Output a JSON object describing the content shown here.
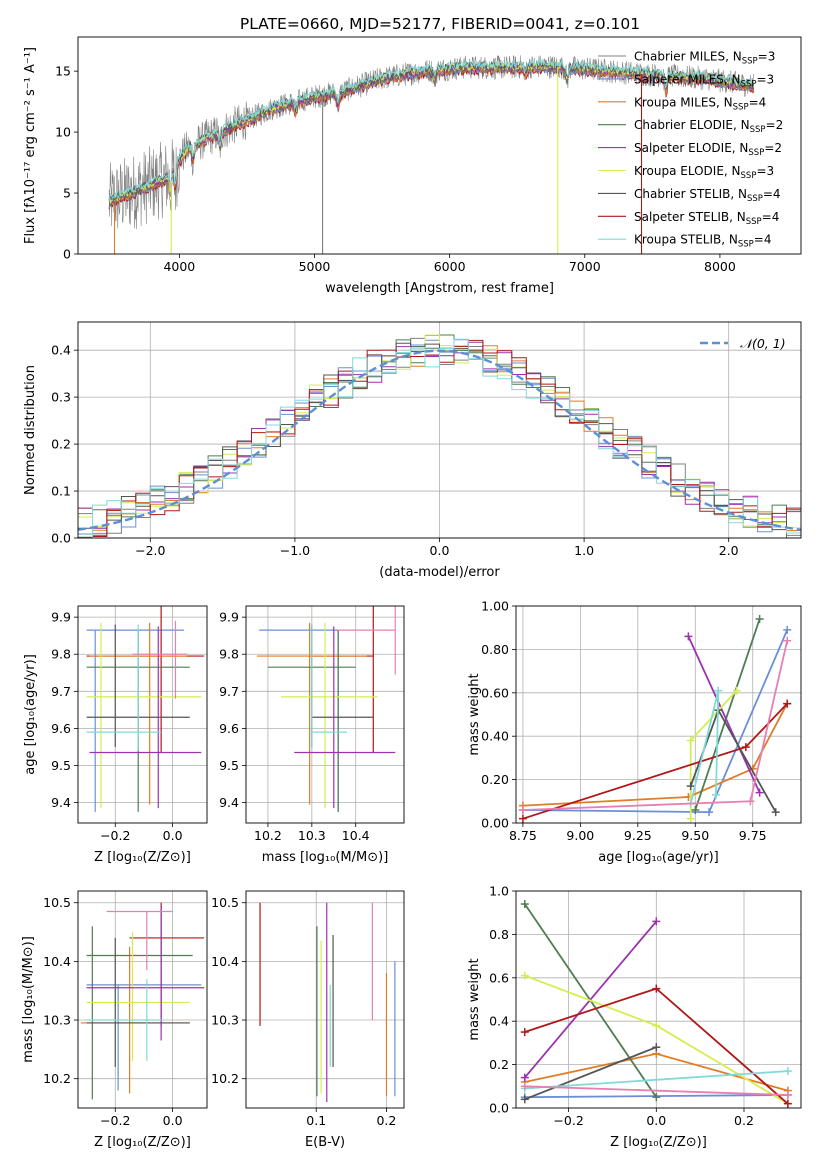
{
  "title": "PLATE=0660, MJD=52177, FIBERID=0041, z=0.101",
  "colors": {
    "cm": "#808080",
    "sm": "#6a8fd8",
    "km": "#e07d28",
    "ce": "#4f7d52",
    "se": "#9c32b0",
    "ke": "#d4ee52",
    "cs": "#555555",
    "ss": "#b01818",
    "ks": "#7fdad8",
    "pink": "#e87fb2",
    "normal": "#5b8fd6"
  },
  "chart_data": [
    {
      "id": "spectrum",
      "type": "line",
      "xlabel": "wavelength [Angstrom, rest frame]",
      "ylabel": "Flux [fλ10⁻¹⁷ erg cm⁻² s⁻¹ A⁻¹]",
      "xlim": [
        3250,
        8600
      ],
      "ylim": [
        0,
        17.8
      ],
      "xticks": [
        4000,
        5000,
        6000,
        7000,
        8000
      ],
      "yticks": [
        0,
        5,
        10,
        15
      ],
      "legend_position": "right",
      "legend": [
        {
          "label": "Chabrier MILES, N",
          "sub": "SSP",
          "suffix": "=3",
          "color": "cm"
        },
        {
          "label": "Salpeter MILES, N",
          "sub": "SSP",
          "suffix": "=3",
          "color": "sm"
        },
        {
          "label": "Kroupa MILES, N",
          "sub": "SSP",
          "suffix": "=4",
          "color": "km"
        },
        {
          "label": "Chabrier ELODIE, N",
          "sub": "SSP",
          "suffix": "=2",
          "color": "ce"
        },
        {
          "label": "Salpeter ELODIE, N",
          "sub": "SSP",
          "suffix": "=2",
          "color": "se"
        },
        {
          "label": "Kroupa ELODIE, N",
          "sub": "SSP",
          "suffix": "=3",
          "color": "ke"
        },
        {
          "label": "Chabrier STELIB, N",
          "sub": "SSP",
          "suffix": "=4",
          "color": "cs"
        },
        {
          "label": "Salpeter STELIB, N",
          "sub": "SSP",
          "suffix": "=4",
          "color": "ss"
        },
        {
          "label": "Kroupa STELIB, N",
          "sub": "SSP",
          "suffix": "=4",
          "color": "ks"
        }
      ],
      "continuum_knots": [
        [
          3480,
          4.3
        ],
        [
          3700,
          5.3
        ],
        [
          3900,
          6.2
        ],
        [
          4050,
          8.5
        ],
        [
          4200,
          9.5
        ],
        [
          4400,
          10.5
        ],
        [
          4700,
          12.0
        ],
        [
          5000,
          12.9
        ],
        [
          5200,
          13.3
        ],
        [
          5500,
          14.4
        ],
        [
          5800,
          15.0
        ],
        [
          6100,
          15.3
        ],
        [
          6400,
          15.3
        ],
        [
          6700,
          15.4
        ],
        [
          7000,
          15.2
        ],
        [
          7300,
          14.9
        ],
        [
          7600,
          14.6
        ],
        [
          7900,
          14.4
        ],
        [
          8250,
          13.8
        ]
      ],
      "absorption_features": [
        [
          3934,
          -1.5
        ],
        [
          3969,
          -1.5
        ],
        [
          4102,
          -1.0
        ],
        [
          4300,
          -1.2
        ],
        [
          4861,
          -0.8
        ],
        [
          5175,
          -1.0
        ],
        [
          5890,
          -0.8
        ],
        [
          6563,
          -0.5
        ],
        [
          6870,
          -1.0
        ],
        [
          7600,
          -1.2
        ]
      ],
      "noisy_model_lines": [
        [
          5060,
          "cm"
        ],
        [
          6800,
          "ke"
        ],
        [
          7420,
          "ss"
        ]
      ]
    },
    {
      "id": "residuals",
      "type": "bar",
      "xlabel": "(data-model)/error",
      "ylabel": "Normed distribution",
      "xlim": [
        -2.5,
        2.5
      ],
      "ylim": [
        0,
        0.46
      ],
      "xticks": [
        -2,
        -1,
        0,
        1,
        2
      ],
      "yticks": [
        0.0,
        0.1,
        0.2,
        0.3,
        0.4
      ],
      "bin_width": 0.1,
      "legend_label": "𝒩(0, 1)",
      "legend_position": "top-right",
      "series_colors": [
        "cm",
        "sm",
        "km",
        "ce",
        "se",
        "ke",
        "cs",
        "ss",
        "ks"
      ]
    },
    {
      "id": "z-age",
      "type": "scatter",
      "xlabel": "Z [log₁₀(Z/Z⊙)]",
      "ylabel": "age  [log₁₀(age/yr)]",
      "xlim": [
        -0.33,
        0.12
      ],
      "ylim": [
        9.345,
        9.93
      ],
      "xticks": [
        -0.2,
        0.0
      ],
      "yticks": [
        9.4,
        9.5,
        9.6,
        9.7,
        9.8,
        9.9
      ],
      "points": [
        {
          "x": -0.27,
          "y": 9.865,
          "xerr": [
            0.03,
            0.31
          ],
          "yerr": [
            0.49,
            0.0
          ],
          "color": "sm"
        },
        {
          "x": -0.04,
          "y": 9.795,
          "xerr": [
            0.26,
            0.15
          ],
          "yerr": [
            0.26,
            0.17
          ],
          "color": "ss"
        },
        {
          "x": -0.08,
          "y": 9.795,
          "xerr": [
            0.21,
            0.13
          ],
          "yerr": [
            0.4,
            0.09
          ],
          "color": "km"
        },
        {
          "x": -0.12,
          "y": 9.765,
          "xerr": [
            0.18,
            0.18
          ],
          "yerr": [
            0.39,
            0.1
          ],
          "color": "ce"
        },
        {
          "x": -0.25,
          "y": 9.685,
          "xerr": [
            0.05,
            0.35
          ],
          "yerr": [
            0.3,
            0.2
          ],
          "color": "ke"
        },
        {
          "x": -0.2,
          "y": 9.63,
          "xerr": [
            0.1,
            0.26
          ],
          "yerr": [
            0.08,
            0.25
          ],
          "color": "cs"
        },
        {
          "x": -0.05,
          "y": 9.535,
          "xerr": [
            0.24,
            0.15
          ],
          "yerr": [
            0.15,
            0.34
          ],
          "color": "se"
        },
        {
          "x": -0.12,
          "y": 9.59,
          "xerr": [
            0.18,
            0.08
          ],
          "yerr": [
            0.05,
            0.29
          ],
          "color": "ks"
        },
        {
          "x": 0.01,
          "y": 9.8,
          "xerr": [
            0.15,
            0.04
          ],
          "yerr": [
            0.12,
            0.09
          ],
          "color": "pink"
        }
      ]
    },
    {
      "id": "mass-age",
      "type": "scatter",
      "xlabel": "mass [log₁₀(M/M⊙)]",
      "ylabel": "",
      "xlim": [
        10.15,
        10.51
      ],
      "ylim": [
        9.345,
        9.93
      ],
      "xticks": [
        10.2,
        10.3,
        10.4
      ],
      "yticks": [
        9.4,
        9.5,
        9.6,
        9.7,
        9.8,
        9.9
      ],
      "points": [
        {
          "x": 10.36,
          "y": 9.865,
          "xerr": [
            0.18,
            0.0
          ],
          "yerr": [
            0.49,
            0.0
          ],
          "color": "sm"
        },
        {
          "x": 10.44,
          "y": 9.795,
          "xerr": [
            0.15,
            0.0
          ],
          "yerr": [
            0.26,
            0.17
          ],
          "color": "ss"
        },
        {
          "x": 10.295,
          "y": 9.795,
          "xerr": [
            0.12,
            0.13
          ],
          "yerr": [
            0.4,
            0.09
          ],
          "color": "km"
        },
        {
          "x": 10.36,
          "y": 9.765,
          "xerr": [
            0.16,
            0.04
          ],
          "yerr": [
            0.39,
            0.1
          ],
          "color": "ce"
        },
        {
          "x": 10.33,
          "y": 9.685,
          "xerr": [
            0.1,
            0.12
          ],
          "yerr": [
            0.3,
            0.2
          ],
          "color": "ke"
        },
        {
          "x": 10.3,
          "y": 9.63,
          "xerr": [
            0.0,
            0.14
          ],
          "yerr": [
            0.08,
            0.25
          ],
          "color": "cs"
        },
        {
          "x": 10.35,
          "y": 9.535,
          "xerr": [
            0.09,
            0.14
          ],
          "yerr": [
            0.15,
            0.34
          ],
          "color": "se"
        },
        {
          "x": 10.3,
          "y": 9.59,
          "xerr": [
            0.0,
            0.08
          ],
          "yerr": [
            0.05,
            0.29
          ],
          "color": "ks"
        },
        {
          "x": 10.49,
          "y": 9.865,
          "xerr": [
            0.13,
            0.0
          ],
          "yerr": [
            0.12,
            0.09
          ],
          "color": "pink"
        }
      ]
    },
    {
      "id": "age-weight",
      "type": "line",
      "xlabel": "age  [log₁₀(age/yr)]",
      "ylabel": "mass weight",
      "xlim": [
        8.72,
        9.96
      ],
      "ylim": [
        0,
        1.0
      ],
      "xticks": [
        8.75,
        9.0,
        9.25,
        9.5,
        9.75
      ],
      "yticks": [
        0.0,
        0.2,
        0.4,
        0.6,
        0.8,
        1.0
      ],
      "series": [
        {
          "color": "sm",
          "x": [
            8.75,
            9.56,
            9.9
          ],
          "y": [
            0.06,
            0.05,
            0.89
          ]
        },
        {
          "color": "km",
          "x": [
            8.75,
            9.47,
            9.75,
            9.9
          ],
          "y": [
            0.08,
            0.12,
            0.25,
            0.55
          ]
        },
        {
          "color": "ce",
          "x": [
            9.5,
            9.78
          ],
          "y": [
            0.06,
            0.94
          ]
        },
        {
          "color": "se",
          "x": [
            9.47,
            9.78
          ],
          "y": [
            0.86,
            0.14
          ]
        },
        {
          "color": "ke",
          "x": [
            9.48,
            9.48,
            9.68
          ],
          "y": [
            0.02,
            0.38,
            0.61
          ]
        },
        {
          "color": "cs",
          "x": [
            9.48,
            9.6,
            9.85
          ],
          "y": [
            0.17,
            0.52,
            0.05
          ]
        },
        {
          "color": "ss",
          "x": [
            8.75,
            9.72,
            9.9
          ],
          "y": [
            0.02,
            0.35,
            0.55
          ]
        },
        {
          "color": "ks",
          "x": [
            9.48,
            9.6,
            9.59
          ],
          "y": [
            0.09,
            0.61,
            0.13
          ]
        },
        {
          "color": "pink",
          "x": [
            8.75,
            9.74,
            9.9
          ],
          "y": [
            0.06,
            0.1,
            0.84
          ]
        }
      ]
    },
    {
      "id": "z-mass",
      "type": "scatter",
      "xlabel": "Z [log₁₀(Z/Z⊙)]",
      "ylabel": "mass [log₁₀(M/M⊙)]",
      "xlim": [
        -0.33,
        0.12
      ],
      "ylim": [
        10.15,
        10.52
      ],
      "xticks": [
        -0.2,
        0.0
      ],
      "yticks": [
        10.2,
        10.3,
        10.4,
        10.5
      ],
      "points": [
        {
          "x": -0.19,
          "y": 10.36,
          "xerr": [
            0.11,
            0.29
          ],
          "yerr": [
            0.18,
            0.0
          ],
          "color": "sm"
        },
        {
          "x": -0.04,
          "y": 10.44,
          "xerr": [
            0.11,
            0.15
          ],
          "yerr": [
            0.15,
            0.06
          ],
          "color": "ss"
        },
        {
          "x": -0.15,
          "y": 10.295,
          "xerr": [
            0.17,
            0.21
          ],
          "yerr": [
            0.12,
            0.13
          ],
          "color": "km"
        },
        {
          "x": -0.28,
          "y": 10.41,
          "xerr": [
            0.02,
            0.35
          ],
          "yerr": [
            0.245,
            0.05
          ],
          "color": "ce"
        },
        {
          "x": -0.14,
          "y": 10.33,
          "xerr": [
            0.16,
            0.2
          ],
          "yerr": [
            0.1,
            0.12
          ],
          "color": "ke"
        },
        {
          "x": -0.2,
          "y": 10.295,
          "xerr": [
            0.1,
            0.26
          ],
          "yerr": [
            0.075,
            0.145
          ],
          "color": "cs"
        },
        {
          "x": -0.04,
          "y": 10.355,
          "xerr": [
            0.26,
            0.15
          ],
          "yerr": [
            0.09,
            0.14
          ],
          "color": "se"
        },
        {
          "x": -0.09,
          "y": 10.3,
          "xerr": [
            0.21,
            0.06
          ],
          "yerr": [
            0.07,
            0.07
          ],
          "color": "ks"
        },
        {
          "x": -0.09,
          "y": 10.485,
          "xerr": [
            0.14,
            0.09
          ],
          "yerr": [
            0.1,
            0.0
          ],
          "color": "pink"
        }
      ]
    },
    {
      "id": "ebv-mass",
      "type": "scatter",
      "xlabel": "E(B-V)",
      "ylabel": "",
      "xlim": [
        0.0,
        0.225
      ],
      "ylim": [
        10.15,
        10.52
      ],
      "xticks": [
        0.1,
        0.2
      ],
      "yticks": [
        10.2,
        10.3,
        10.4,
        10.5
      ],
      "points": [
        {
          "x": 0.02,
          "y": 10.4,
          "yerr": [
            0.11,
            0.1
          ],
          "color": "ss"
        },
        {
          "x": 0.101,
          "y": 10.31,
          "yerr": [
            0.14,
            0.15
          ],
          "color": "ce"
        },
        {
          "x": 0.107,
          "y": 10.335,
          "yerr": [
            0.16,
            0.1
          ],
          "color": "ke"
        },
        {
          "x": 0.115,
          "y": 10.35,
          "yerr": [
            0.19,
            0.15
          ],
          "color": "se"
        },
        {
          "x": 0.124,
          "y": 10.33,
          "yerr": [
            0.11,
            0.115
          ],
          "color": "cs"
        },
        {
          "x": 0.12,
          "y": 10.29,
          "yerr": [
            0.07,
            0.07
          ],
          "color": "ks"
        },
        {
          "x": 0.18,
          "y": 10.4,
          "yerr": [
            0.1,
            0.1
          ],
          "color": "pink"
        },
        {
          "x": 0.2,
          "y": 10.29,
          "yerr": [
            0.12,
            0.09
          ],
          "color": "km"
        },
        {
          "x": 0.212,
          "y": 10.29,
          "yerr": [
            0.12,
            0.11
          ],
          "color": "sm"
        }
      ]
    },
    {
      "id": "z-weight",
      "type": "line",
      "xlabel": "Z [log₁₀(Z/Z⊙)]",
      "ylabel": "mass weight",
      "xlim": [
        -0.32,
        0.33
      ],
      "ylim": [
        0,
        1.0
      ],
      "xticks": [
        -0.2,
        0.0,
        0.2
      ],
      "yticks": [
        0.0,
        0.2,
        0.4,
        0.6,
        0.8,
        1.0
      ],
      "series": [
        {
          "color": "sm",
          "x": [
            -0.3,
            0.3
          ],
          "y": [
            0.05,
            0.06
          ]
        },
        {
          "color": "km",
          "x": [
            -0.3,
            0.0,
            0.3
          ],
          "y": [
            0.12,
            0.25,
            0.08
          ]
        },
        {
          "color": "ce",
          "x": [
            -0.3,
            0.0
          ],
          "y": [
            0.94,
            0.05
          ]
        },
        {
          "color": "se",
          "x": [
            -0.3,
            0.0
          ],
          "y": [
            0.14,
            0.86
          ]
        },
        {
          "color": "ke",
          "x": [
            -0.3,
            0.0,
            0.3
          ],
          "y": [
            0.61,
            0.38,
            0.02
          ]
        },
        {
          "color": "cs",
          "x": [
            -0.3,
            0.0
          ],
          "y": [
            0.04,
            0.28
          ]
        },
        {
          "color": "ss",
          "x": [
            -0.3,
            0.0,
            0.3
          ],
          "y": [
            0.35,
            0.55,
            0.02
          ]
        },
        {
          "color": "ks",
          "x": [
            -0.3,
            0.3
          ],
          "y": [
            0.09,
            0.17
          ]
        },
        {
          "color": "pink",
          "x": [
            -0.3,
            0.3
          ],
          "y": [
            0.1,
            0.06
          ]
        }
      ]
    }
  ]
}
